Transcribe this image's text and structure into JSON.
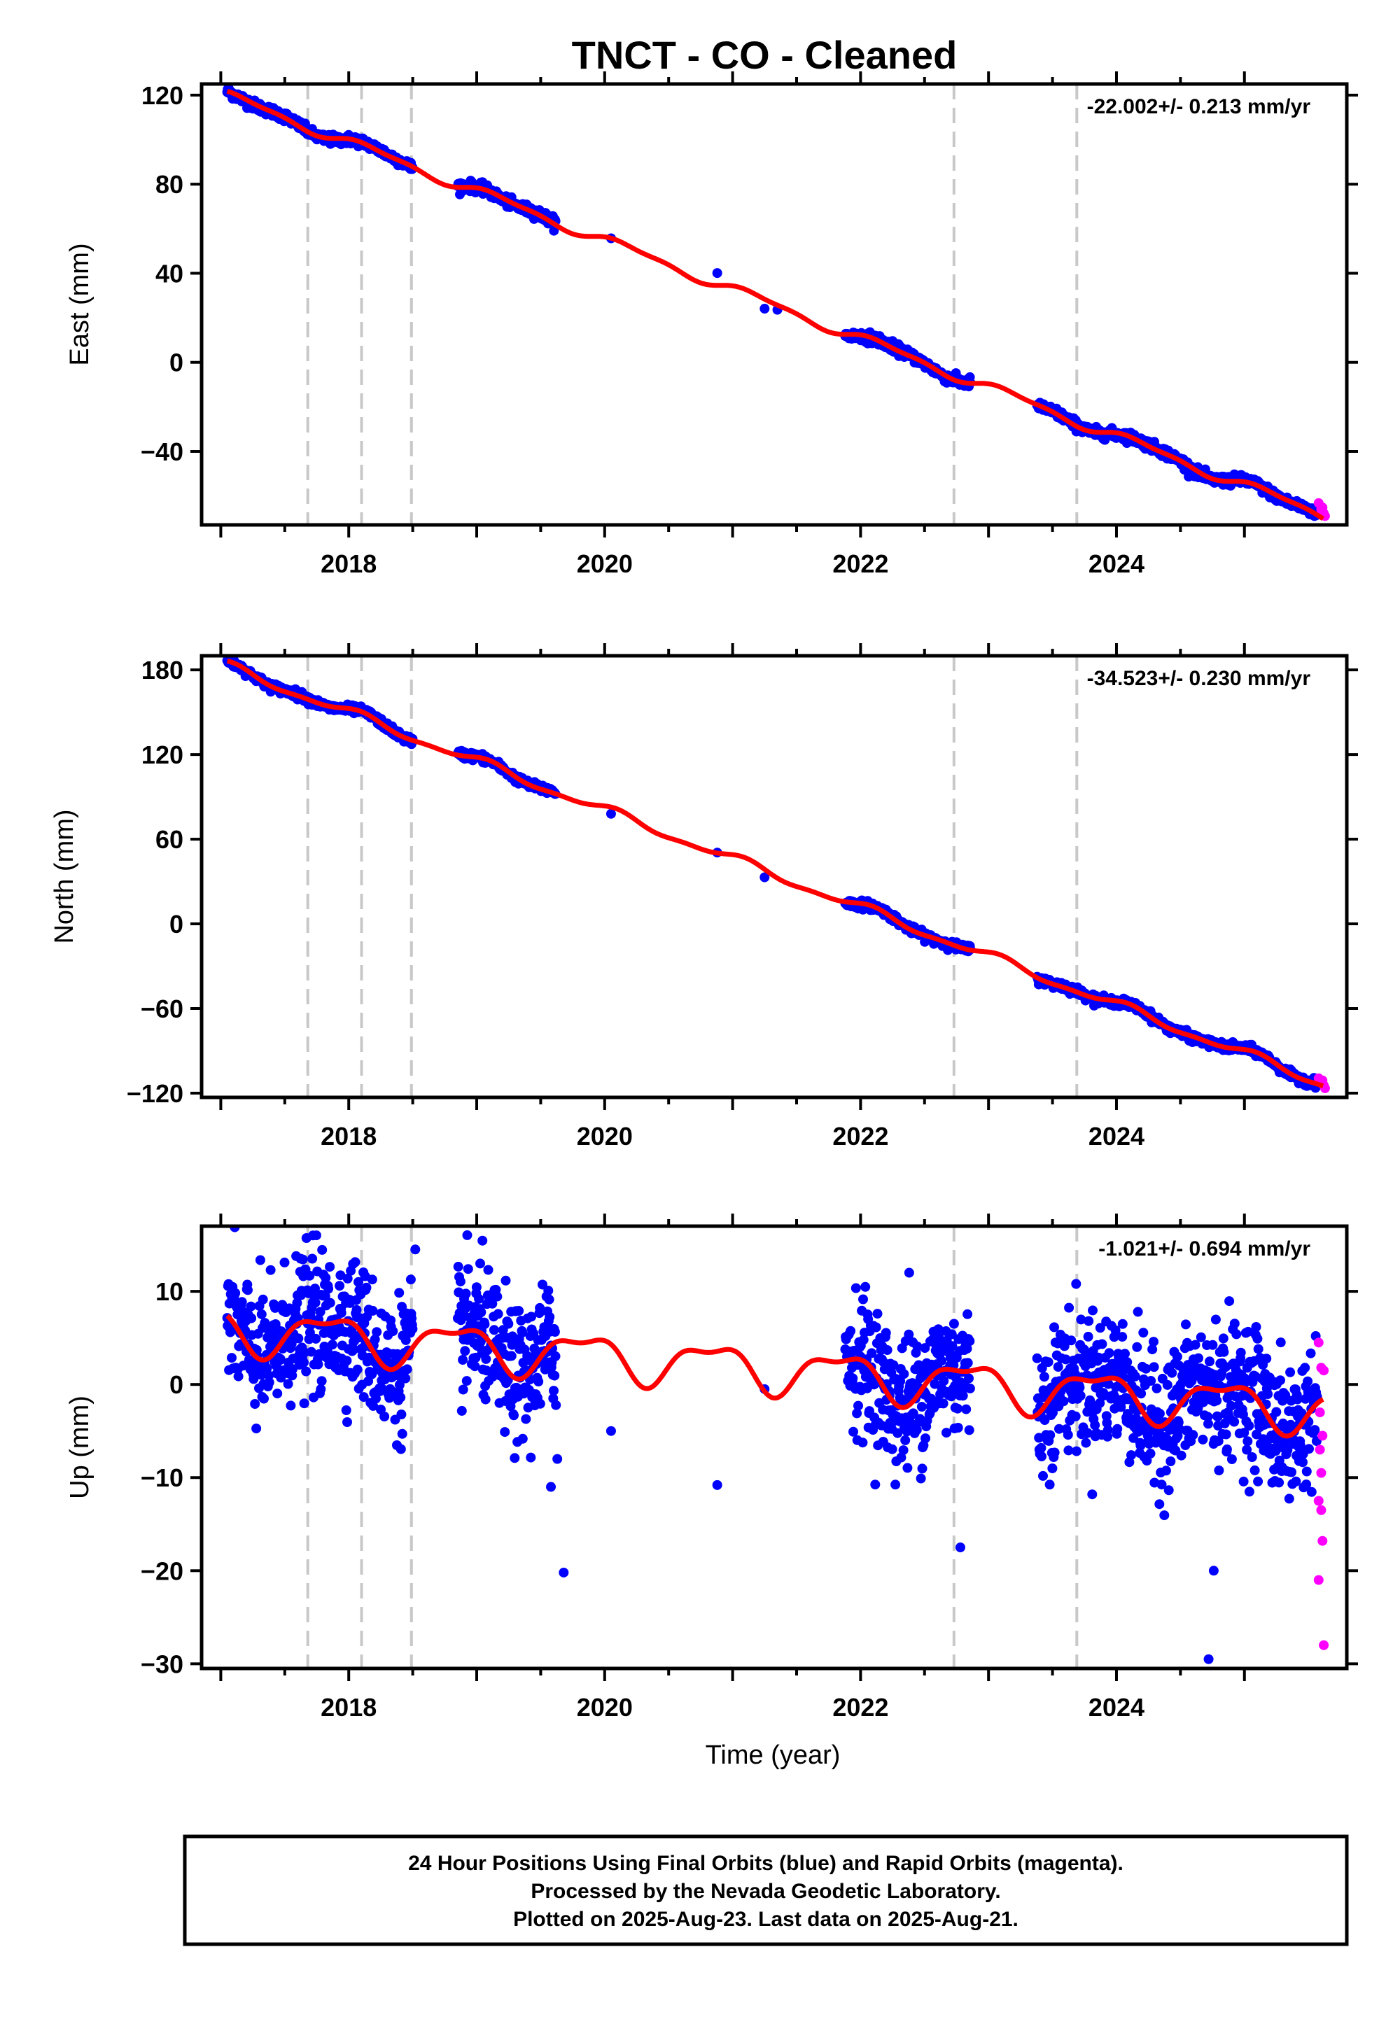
{
  "title": "TNCT  - CO - Cleaned",
  "footer": {
    "line1": "24 Hour Positions Using Final Orbits (blue) and Rapid Orbits (magenta).",
    "line2": "Processed by the Nevada Geodetic Laboratory.",
    "line3": "Plotted on 2025-Aug-23. Last data on 2025-Aug-21."
  },
  "colors": {
    "final_orbits": "#0000ff",
    "rapid_orbits": "#ff00ff",
    "model": "#ff0000",
    "events": "#c8c8c8"
  },
  "chart_data": [
    {
      "type": "scatter",
      "ylabel": "East (mm)",
      "xlabel": "",
      "rate": "-22.002+/- 0.213 mm/yr",
      "xlim": [
        2016.85,
        2025.8
      ],
      "ylim": [
        -73,
        125
      ],
      "yticks": [
        -40,
        0,
        40,
        80,
        120
      ],
      "xticks": [
        2018,
        2020,
        2022,
        2024
      ],
      "xminor": [
        2017,
        2018,
        2019,
        2020,
        2021,
        2022,
        2023,
        2024,
        2025
      ],
      "event_lines": [
        2017.68,
        2018.1,
        2018.49,
        2022.73,
        2023.69
      ],
      "linear": {
        "t0": 2017.05,
        "v0": 119.7,
        "rate": -22.002
      },
      "seasonal": {
        "amp": 2.0,
        "phase": 0.4,
        "amp2": 0.8,
        "phase2": 1.3
      },
      "noise": 1.1,
      "outliers": [
        [
          2020.05,
          55.7
        ],
        [
          2020.88,
          40.1
        ],
        [
          2021.25,
          24.1
        ],
        [
          2021.35,
          23.6
        ]
      ],
      "rapid": [
        [
          2025.58,
          -63.2
        ],
        [
          2025.6,
          -66.0
        ],
        [
          2025.62,
          -67.8
        ],
        [
          2025.63,
          -69.0
        ],
        [
          2025.61,
          -65.2
        ]
      ]
    },
    {
      "type": "scatter",
      "ylabel": "North (mm)",
      "xlabel": "",
      "rate": "-34.523+/- 0.230 mm/yr",
      "xlim": [
        2016.85,
        2025.8
      ],
      "ylim": [
        -123,
        190
      ],
      "yticks": [
        -120,
        -60,
        0,
        60,
        120,
        180
      ],
      "xticks": [
        2018,
        2020,
        2022,
        2024
      ],
      "xminor": [
        2017,
        2018,
        2019,
        2020,
        2021,
        2022,
        2023,
        2024,
        2025
      ],
      "event_lines": [
        2017.68,
        2018.1,
        2018.49,
        2022.73,
        2023.69
      ],
      "linear": {
        "t0": 2017.05,
        "v0": 182.5,
        "rate": -34.523
      },
      "seasonal": {
        "amp": 3.0,
        "phase": 1.1,
        "amp2": 1.2,
        "phase2": 0.2
      },
      "noise": 1.4,
      "outliers": [
        [
          2020.05,
          78.0
        ],
        [
          2020.88,
          50.5
        ],
        [
          2021.25,
          33.0
        ]
      ],
      "rapid": [
        [
          2025.58,
          -109.5
        ],
        [
          2025.6,
          -112.0
        ],
        [
          2025.62,
          -114.5
        ],
        [
          2025.63,
          -116.5
        ],
        [
          2025.61,
          -111.0
        ]
      ]
    },
    {
      "type": "scatter",
      "ylabel": "Up (mm)",
      "xlabel": "Time (year)",
      "rate": "-1.021+/- 0.694 mm/yr",
      "xlim": [
        2016.85,
        2025.8
      ],
      "ylim": [
        -30.5,
        17
      ],
      "yticks": [
        -30,
        -20,
        -10,
        0,
        10
      ],
      "xticks": [
        2018,
        2020,
        2022,
        2024
      ],
      "xminor": [
        2017,
        2018,
        2019,
        2020,
        2021,
        2022,
        2023,
        2024,
        2025
      ],
      "event_lines": [
        2017.68,
        2018.1,
        2018.49,
        2022.73,
        2023.69
      ],
      "linear": {
        "t0": 2017.05,
        "v0": 6.0,
        "rate": -1.021
      },
      "seasonal": {
        "amp": 2.2,
        "phase": 2.6,
        "amp2": 0.9,
        "phase2": 0.7
      },
      "noise": 3.6,
      "outliers": [
        [
          2017.72,
          16.0
        ],
        [
          2018.52,
          14.5
        ],
        [
          2019.63,
          -8.0
        ],
        [
          2019.68,
          -20.2
        ],
        [
          2019.58,
          -11.0
        ],
        [
          2020.05,
          -5.0
        ],
        [
          2020.88,
          -10.8
        ],
        [
          2021.25,
          -0.5
        ],
        [
          2022.78,
          -17.5
        ],
        [
          2024.72,
          -29.5
        ],
        [
          2024.76,
          -20.0
        ],
        [
          2022.38,
          12.0
        ]
      ],
      "rapid": [
        [
          2025.58,
          4.5
        ],
        [
          2025.6,
          1.8
        ],
        [
          2025.61,
          -5.5
        ],
        [
          2025.59,
          -7.0
        ],
        [
          2025.6,
          -9.5
        ],
        [
          2025.58,
          -12.5
        ],
        [
          2025.61,
          -16.8
        ],
        [
          2025.58,
          -21.0
        ],
        [
          2025.62,
          -28.0
        ],
        [
          2025.6,
          -13.5
        ],
        [
          2025.62,
          1.5
        ],
        [
          2025.59,
          -3.0
        ]
      ]
    }
  ]
}
